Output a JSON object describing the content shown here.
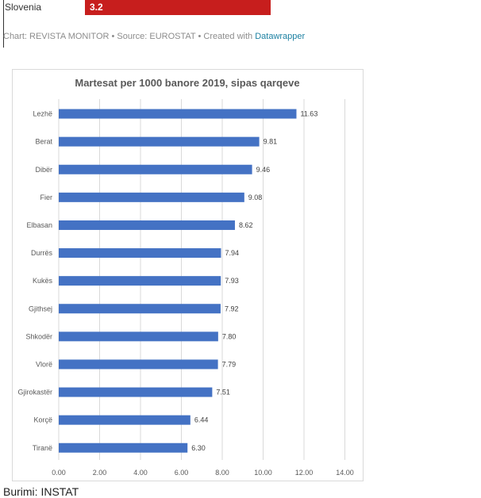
{
  "top_table": {
    "row_label": "Slovenia",
    "row_value": "3.2",
    "row_color": "#c71e1d",
    "credit_prefix": "Chart: REVISTA MONITOR • Source: EUROSTAT • Created with ",
    "credit_link": "Datawrapper"
  },
  "chart_data": {
    "type": "bar",
    "orientation": "horizontal",
    "title": "Martesat per 1000 banore 2019, sipas qarqeve",
    "categories": [
      "Lezhë",
      "Berat",
      "Dibër",
      "Fier",
      "Elbasan",
      "Durrës",
      "Kukës",
      "Gjithsej",
      "Shkodër",
      "Vlorë",
      "Gjirokastër",
      "Korçë",
      "Tiranë"
    ],
    "values": [
      11.63,
      9.81,
      9.46,
      9.08,
      8.62,
      7.94,
      7.93,
      7.92,
      7.8,
      7.79,
      7.51,
      6.44,
      6.3
    ],
    "value_labels": [
      "11.63",
      "9.81",
      "9.46",
      "9.08",
      "8.62",
      "7.94",
      "7.93",
      "7.92",
      "7.80",
      "7.79",
      "7.51",
      "6.44",
      "6.30"
    ],
    "xlim": [
      0,
      14
    ],
    "x_ticks": [
      "0.00",
      "2.00",
      "4.00",
      "6.00",
      "8.00",
      "10.00",
      "12.00",
      "14.00"
    ],
    "grid": true,
    "bar_color": "#4472c4"
  },
  "source_text": "Burimi: INSTAT"
}
